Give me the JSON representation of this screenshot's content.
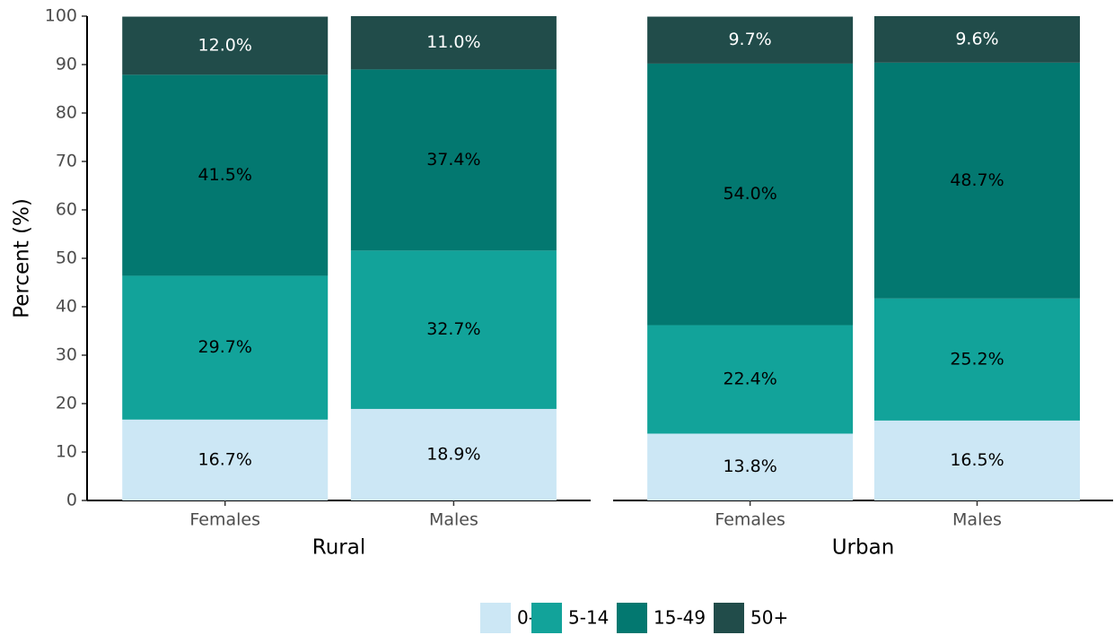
{
  "chart_data": {
    "type": "bar",
    "stacked": true,
    "ylabel": "Percent (%)",
    "groups": [
      "Rural",
      "Urban"
    ],
    "categories": [
      "Females",
      "Males",
      "Females",
      "Males"
    ],
    "ylim": [
      0,
      100
    ],
    "yticks": [
      0,
      10,
      20,
      30,
      40,
      50,
      60,
      70,
      80,
      90,
      100
    ],
    "legend": "bottom",
    "series": [
      {
        "name": "0-4",
        "color": "#cce7f5",
        "values": [
          16.7,
          18.9,
          13.8,
          16.5
        ],
        "value_labels": [
          "16.7%",
          "18.9%",
          "13.8%",
          "16.5%"
        ]
      },
      {
        "name": "5-14",
        "color": "#12a39a",
        "values": [
          29.7,
          32.7,
          22.4,
          25.2
        ],
        "value_labels": [
          "29.7%",
          "32.7%",
          "22.4%",
          "25.2%"
        ]
      },
      {
        "name": "15-49",
        "color": "#037870",
        "values": [
          41.5,
          37.4,
          54.0,
          48.7
        ],
        "value_labels": [
          "41.5%",
          "37.4%",
          "54.0%",
          "48.7%"
        ]
      },
      {
        "name": "50+",
        "color": "#214c4a",
        "values": [
          12.0,
          11.0,
          9.7,
          9.6
        ],
        "value_labels": [
          "12.0%",
          "11.0%",
          "9.7%",
          "9.6%"
        ]
      }
    ]
  }
}
